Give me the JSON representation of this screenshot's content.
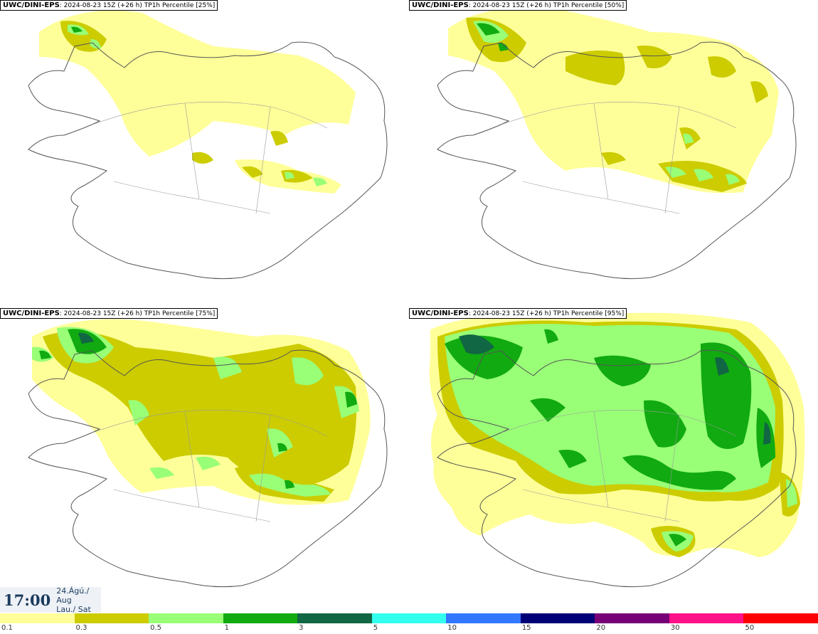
{
  "panels": [
    {
      "source": "UWC/DINI-EPS",
      "info": ": 2024-08-23 15Z (+26 h)",
      "field": "TP1h Percentile [25%]"
    },
    {
      "source": "UWC/DINI-EPS",
      "info": ": 2024-08-23 15Z (+26 h)",
      "field": "TP1h Percentile [50%]"
    },
    {
      "source": "UWC/DINI-EPS",
      "info": ": 2024-08-23 15Z (+26 h)",
      "field": "TP1h Percentile [75%]"
    },
    {
      "source": "UWC/DINI-EPS",
      "info": ": 2024-08-23 15Z (+26 h)",
      "field": "TP1h Percentile [95%]"
    }
  ],
  "valid_time": {
    "clock": "17:00",
    "date_line1": "24.Ágú./ Aug",
    "date_line2": "Lau./ Sat"
  },
  "legend": {
    "colors": [
      "#ffff99",
      "#cccc00",
      "#99ff77",
      "#11aa11",
      "#116644",
      "#33ffee",
      "#3377ff",
      "#000077",
      "#770077",
      "#ff1188",
      "#ff0000"
    ],
    "labels": [
      "0.1",
      "0.3",
      "0.5",
      "1",
      "3",
      "5",
      "10",
      "15",
      "20",
      "30",
      "50"
    ]
  }
}
